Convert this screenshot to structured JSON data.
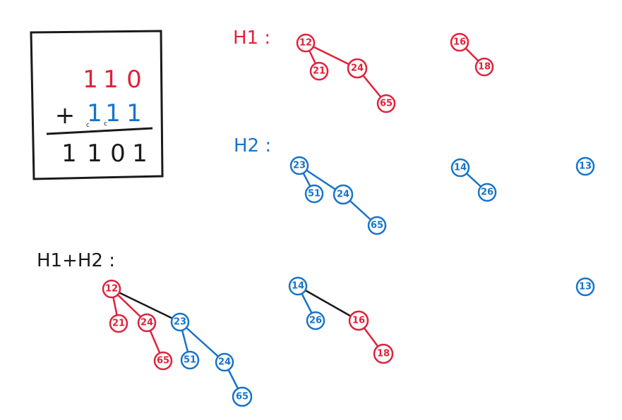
{
  "colors": {
    "h1": "#e0223a",
    "h2": "#1874c8",
    "ink": "#1a1a1a",
    "link": "#1a1a1a"
  },
  "addition": {
    "row1": [
      "1",
      "1",
      "0"
    ],
    "plus": "+",
    "row2": [
      "1",
      "1",
      "1"
    ],
    "carries": [
      "c",
      "c"
    ],
    "result": [
      "1",
      "1",
      "0",
      "1"
    ]
  },
  "labels": {
    "h1": "H1 :",
    "h2": "H2 :",
    "sum": "H1+H2 :"
  },
  "h1_trees": [
    {
      "nodes": [
        "12",
        "21",
        "24",
        "65"
      ],
      "edges": [
        [
          "12",
          "21"
        ],
        [
          "12",
          "24"
        ],
        [
          "24",
          "65"
        ]
      ]
    },
    {
      "nodes": [
        "16",
        "18"
      ],
      "edges": [
        [
          "16",
          "18"
        ]
      ]
    }
  ],
  "h2_trees": [
    {
      "nodes": [
        "23",
        "51",
        "24",
        "65"
      ],
      "edges": [
        [
          "23",
          "51"
        ],
        [
          "23",
          "24"
        ],
        [
          "24",
          "65"
        ]
      ]
    },
    {
      "nodes": [
        "14",
        "26"
      ],
      "edges": [
        [
          "14",
          "26"
        ]
      ]
    },
    {
      "nodes": [
        "13"
      ],
      "edges": []
    }
  ],
  "sum_trees": [
    {
      "nodes": [
        "12",
        "21",
        "24",
        "65",
        "23",
        "51",
        "24",
        "65"
      ]
    },
    {
      "nodes": [
        "14",
        "26",
        "16",
        "18"
      ]
    },
    {
      "nodes": [
        "13"
      ]
    }
  ]
}
